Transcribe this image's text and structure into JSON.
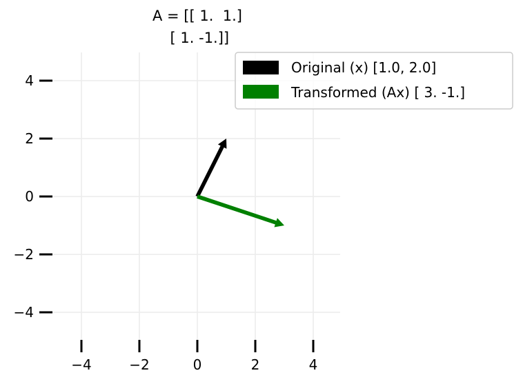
{
  "chart_data": {
    "type": "vector",
    "title_lines": [
      "A = [[ 1.  1.]",
      " [ 1. -1.]]"
    ],
    "matrix": [
      [
        1,
        1
      ],
      [
        1,
        -1
      ]
    ],
    "xlim": [
      -5,
      5
    ],
    "ylim": [
      -5,
      5
    ],
    "xticks": [
      -4,
      -2,
      0,
      2,
      4
    ],
    "yticks": [
      -4,
      -2,
      0,
      2,
      4
    ],
    "xtick_labels": [
      "−4",
      "−2",
      "0",
      "2",
      "4"
    ],
    "ytick_labels": [
      "−4",
      "−2",
      "0",
      "2",
      "4"
    ],
    "grid": true,
    "legend_position": "top-right",
    "series": [
      {
        "name": "Original (x) [1.0, 2.0]",
        "origin": [
          0,
          0
        ],
        "vector": [
          1,
          2
        ],
        "color": "#000000"
      },
      {
        "name": "Transformed (Ax) [ 3. -1.]",
        "origin": [
          0,
          0
        ],
        "vector": [
          3,
          -1
        ],
        "color": "#008000"
      }
    ]
  }
}
